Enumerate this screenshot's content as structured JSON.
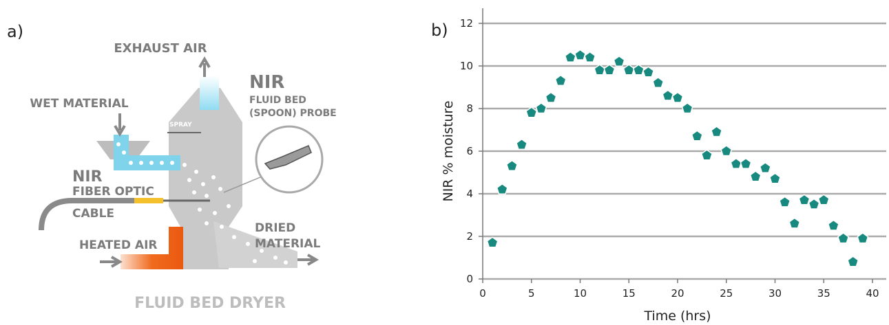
{
  "diagram": {
    "panel_label": "a)",
    "title": "FLUID BED DRYER",
    "exhaust_air": "EXHAUST AIR",
    "wet_material": "WET MATERIAL",
    "probe_label": [
      "NIR",
      "FLUID BED",
      "(SPOON) PROBE"
    ],
    "spray": "SPRAY",
    "cable_label": [
      "NIR",
      "FIBER OPTIC",
      "CABLE"
    ],
    "heated_air": "HEATED AIR",
    "dried_material": [
      "DRIED",
      "MATERIAL"
    ]
  },
  "chart_data": {
    "type": "scatter",
    "panel_label": "b)",
    "x_label": "Time (hrs)",
    "y_label": "NIR % moisture",
    "x": [
      1,
      2,
      3,
      4,
      5,
      6,
      7,
      8,
      9,
      10,
      11,
      12,
      13,
      14,
      15,
      16,
      17,
      18,
      19,
      20,
      21,
      22,
      23,
      24,
      25,
      26,
      27,
      28,
      29,
      30,
      31,
      32,
      33,
      34,
      35,
      36,
      37,
      38,
      39
    ],
    "series": [
      {
        "name": "NIR % moisture",
        "color": "#17897f",
        "values": [
          1.7,
          4.2,
          5.3,
          6.3,
          7.8,
          8.0,
          8.5,
          9.3,
          10.4,
          10.5,
          10.4,
          9.8,
          9.8,
          10.2,
          9.8,
          9.8,
          9.7,
          9.2,
          8.6,
          8.5,
          8.0,
          6.7,
          5.8,
          6.9,
          6.0,
          5.4,
          5.4,
          4.8,
          5.2,
          4.7,
          3.6,
          2.6,
          3.7,
          3.5,
          3.7,
          2.5,
          1.9,
          0.8,
          1.9
        ]
      }
    ],
    "xlim": [
      0,
      40
    ],
    "xticks": [
      0,
      5,
      10,
      15,
      20,
      25,
      30,
      35,
      40
    ],
    "ylim": [
      0,
      12
    ],
    "yticks": [
      0,
      2,
      4,
      6,
      8,
      10,
      12
    ],
    "grid": true
  }
}
